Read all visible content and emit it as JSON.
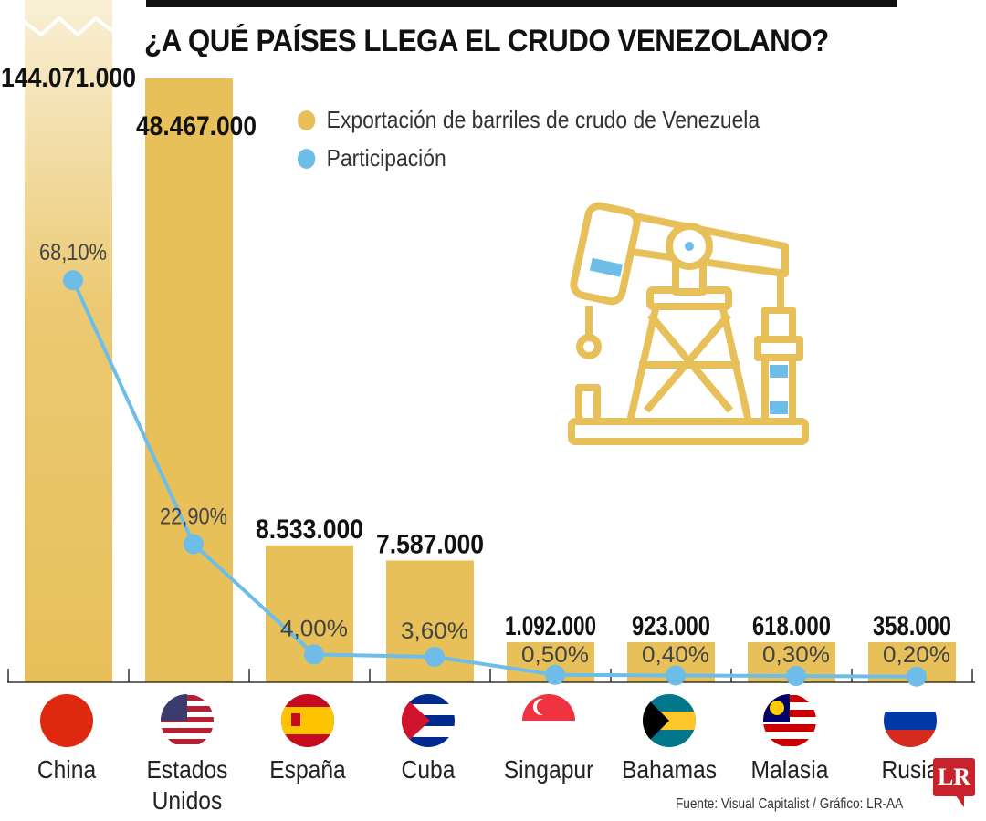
{
  "title": "¿A QUÉ PAÍSES LLEGA EL CRUDO VENEZOLANO?",
  "source": "Fuente: Visual Capitalist / Gráfico: LR-AA",
  "logo": "LR",
  "colors": {
    "bar": "#e8c05a",
    "line": "#6dbde8",
    "text": "#111111"
  },
  "chart_data": {
    "type": "bar",
    "title": "¿A QUÉ PAÍSES LLEGA EL CRUDO VENEZOLANO?",
    "categories": [
      "China",
      "Estados Unidos",
      "España",
      "Cuba",
      "Singapur",
      "Bahamas",
      "Malasia",
      "Rusia"
    ],
    "series": [
      {
        "name": "Exportación de barriles de crudo de Venezuela",
        "type": "bar",
        "values": [
          144071000,
          48467000,
          8533000,
          7587000,
          1092000,
          923000,
          618000,
          358000
        ],
        "labels": [
          "144.071.000",
          "48.467.000",
          "8.533.000",
          "7.587.000",
          "1.092.000",
          "923.000",
          "618.000",
          "358.000"
        ]
      },
      {
        "name": "Participación",
        "type": "line",
        "values": [
          68.1,
          22.9,
          4.0,
          3.6,
          0.5,
          0.4,
          0.3,
          0.2
        ],
        "labels": [
          "68,10%",
          "22,90%",
          "4,00%",
          "3,60%",
          "0,50%",
          "0,40%",
          "0,30%",
          "0,20%"
        ]
      }
    ],
    "legend": [
      "Exportación de barriles de crudo de Venezuela",
      "Participación"
    ],
    "legend_position": "top",
    "axis_broken": "China bar truncated",
    "xlabel": "",
    "ylabel": ""
  }
}
